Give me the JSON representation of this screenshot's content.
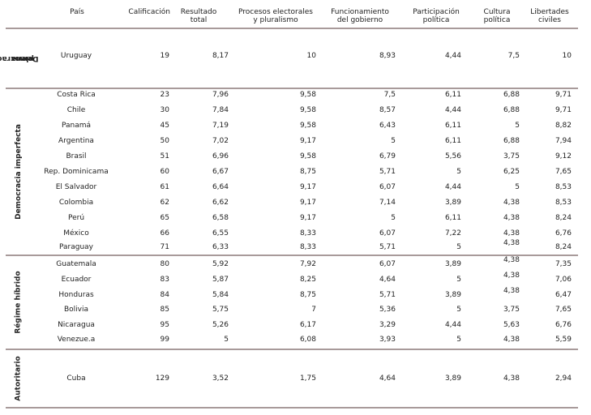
{
  "headers": {
    "pais": [
      "País"
    ],
    "calificacion": [
      "Calificación"
    ],
    "resultado": [
      "Resultado",
      "total"
    ],
    "procesos": [
      "Procesos electorales",
      "y pluralismo"
    ],
    "funcionamiento": [
      "Funcionamiento",
      "del gobierno"
    ],
    "participacion": [
      "Participación",
      "política"
    ],
    "cultura": [
      "Cultura",
      "política"
    ],
    "libertades": [
      "Libertades",
      "civiles"
    ]
  },
  "groups": [
    {
      "label": [
        "Democracia",
        "plena"
      ]
    },
    {
      "label": [
        "Democracia imperfecta"
      ]
    },
    {
      "label": [
        "Régime híbrido"
      ]
    },
    {
      "label": [
        "Autoritario"
      ]
    }
  ],
  "rows": [
    {
      "country": "Uruguay",
      "cal": "19",
      "res": "8,17",
      "proc": "10",
      "func": "8,93",
      "part": "4,44",
      "cult": "7,5",
      "lib": "10"
    },
    {
      "country": "Costa Rica",
      "cal": "23",
      "res": "7,96",
      "proc": "9,58",
      "func": "7,5",
      "part": "6,11",
      "cult": "6,88",
      "lib": "9,71"
    },
    {
      "country": "Chile",
      "cal": "30",
      "res": "7,84",
      "proc": "9,58",
      "func": "8,57",
      "part": "4,44",
      "cult": "6,88",
      "lib": "9,71"
    },
    {
      "country": "Panamá",
      "cal": "45",
      "res": "7,19",
      "proc": "9,58",
      "func": "6,43",
      "part": "6,11",
      "cult": "5",
      "lib": "8,82"
    },
    {
      "country": "Argentina",
      "cal": "50",
      "res": "7,02",
      "proc": "9,17",
      "func": "5",
      "part": "6,11",
      "cult": "6,88",
      "lib": "7,94"
    },
    {
      "country": "Brasil",
      "cal": "51",
      "res": "6,96",
      "proc": "9,58",
      "func": "6,79",
      "part": "5,56",
      "cult": "3,75",
      "lib": "9,12"
    },
    {
      "country": "Rep. Dominicama",
      "cal": "60",
      "res": "6,67",
      "proc": "8,75",
      "func": "5,71",
      "part": "5",
      "cult": "6,25",
      "lib": "7,65"
    },
    {
      "country": "El Salvador",
      "cal": "61",
      "res": "6,64",
      "proc": "9,17",
      "func": "6,07",
      "part": "4,44",
      "cult": "5",
      "lib": "8,53"
    },
    {
      "country": "Colombia",
      "cal": "62",
      "res": "6,62",
      "proc": "9,17",
      "func": "7,14",
      "part": "3,89",
      "cult": "4,38",
      "lib": "8,53"
    },
    {
      "country": "Perú",
      "cal": "65",
      "res": "6,58",
      "proc": "9,17",
      "func": "5",
      "part": "6,11",
      "cult": "4,38",
      "lib": "8,24"
    },
    {
      "country": "México",
      "cal": "66",
      "res": "6,55",
      "proc": "8,33",
      "func": "6,07",
      "part": "7,22",
      "cult": "4,38",
      "lib": "6,76"
    },
    {
      "country": "Paraguay",
      "cal": "71",
      "res": "6,33",
      "proc": "8,33",
      "func": "5,71",
      "part": "5",
      "cult": "4,38",
      "lib": "8,24"
    },
    {
      "country": "Guatemala",
      "cal": "80",
      "res": "5,92",
      "proc": "7,92",
      "func": "6,07",
      "part": "3,89",
      "cult": "4,38",
      "lib": "7,35"
    },
    {
      "country": "Ecuador",
      "cal": "83",
      "res": "5,87",
      "proc": "8,25",
      "func": "4,64",
      "part": "5",
      "cult": "4,38",
      "lib": "7,06"
    },
    {
      "country": "Honduras",
      "cal": "84",
      "res": "5,84",
      "proc": "8,75",
      "func": "5,71",
      "part": "3,89",
      "cult": "4,38",
      "lib": "6,47"
    },
    {
      "country": "Bolivia",
      "cal": "85",
      "res": "5,75",
      "proc": "7",
      "func": "5,36",
      "part": "5",
      "cult": "3,75",
      "lib": "7,65"
    },
    {
      "country": "Nicaragua",
      "cal": "95",
      "res": "5,26",
      "proc": "6,17",
      "func": "3,29",
      "part": "4,44",
      "cult": "5,63",
      "lib": "6,76"
    },
    {
      "country": "Venezue.a",
      "cal": "99",
      "res": "5",
      "proc": "6,08",
      "func": "3,93",
      "part": "5",
      "cult": "4,38",
      "lib": "5,59"
    },
    {
      "country": "Cuba",
      "cal": "129",
      "res": "3,52",
      "proc": "1,75",
      "func": "4,64",
      "part": "3,89",
      "cult": "4,38",
      "lib": "2,94"
    }
  ]
}
